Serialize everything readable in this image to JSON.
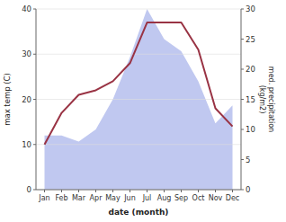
{
  "chart_data": {
    "type": "line",
    "categories": [
      "Jan",
      "Feb",
      "Mar",
      "Apr",
      "May",
      "Jun",
      "Jul",
      "Aug",
      "Sep",
      "Oct",
      "Nov",
      "Dec"
    ],
    "series": [
      {
        "type": "area",
        "axis": "y2",
        "color": "#c0c8f0",
        "values": [
          9,
          9,
          8,
          10,
          15,
          22,
          30,
          25,
          23,
          18,
          11,
          14
        ]
      },
      {
        "type": "line",
        "color": "#993344",
        "values": [
          10,
          17,
          21,
          22,
          24,
          28,
          37,
          37,
          37,
          31,
          18,
          14
        ]
      }
    ],
    "xlabel": "date (month)",
    "ylabel": "max temp (C)",
    "y2label": "med. precipitation\n(kg/m2)",
    "ylim": [
      0,
      40
    ],
    "yticks": [
      0,
      10,
      20,
      30,
      40
    ],
    "y2lim": [
      0,
      30
    ],
    "y2ticks": [
      0,
      5,
      10,
      15,
      20,
      25,
      30
    ],
    "grid": true
  }
}
